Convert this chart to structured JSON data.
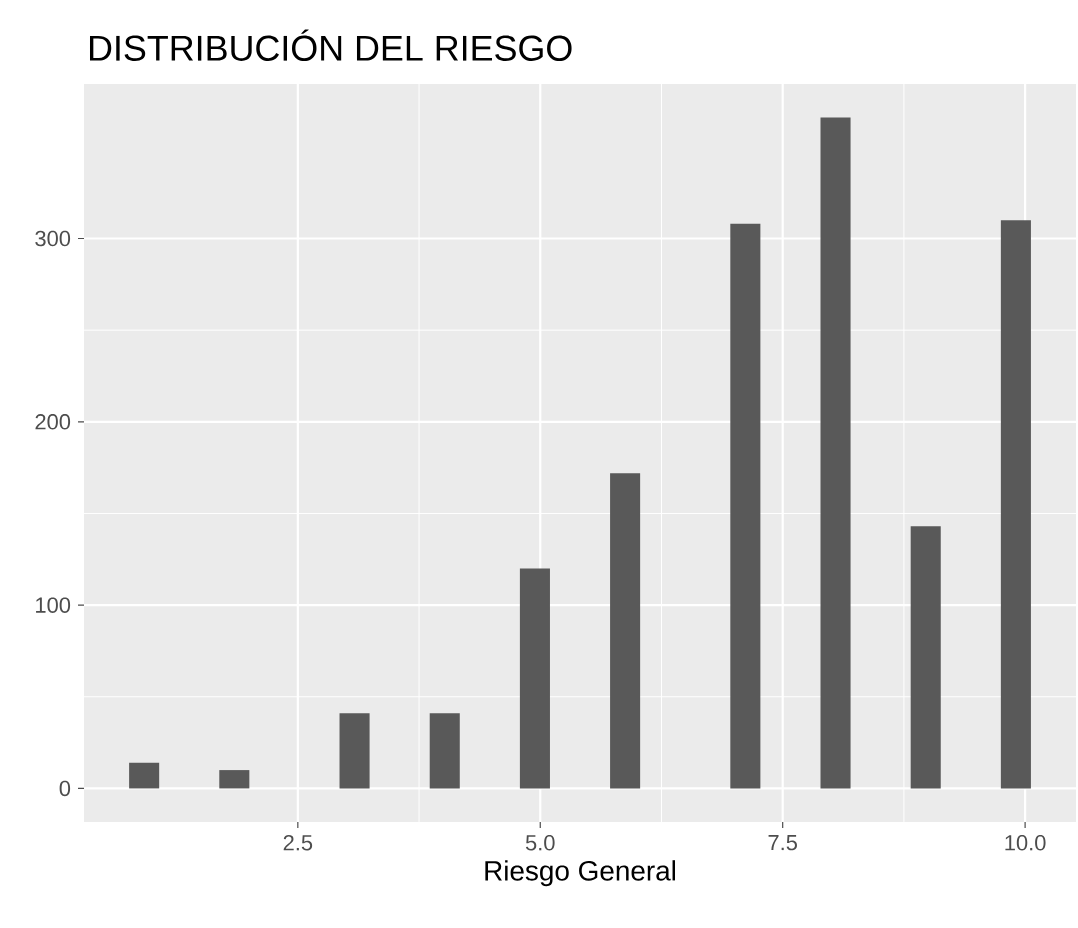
{
  "chart_data": {
    "type": "histogram",
    "title": "DISTRIBUCIÓN DEL RIESGO",
    "xlabel": "Riesgo General",
    "bins": [
      0.76,
      1.07,
      1.38,
      1.69,
      2.0,
      2.31,
      2.62,
      2.93,
      3.24,
      3.55,
      3.86,
      4.17,
      4.48,
      4.79,
      5.1,
      5.41,
      5.72,
      6.03,
      6.34,
      6.65,
      6.96,
      7.27,
      7.58,
      7.89,
      8.2,
      8.51,
      8.82,
      9.13,
      9.44,
      9.75,
      10.06
    ],
    "values": [
      14,
      0,
      0,
      10,
      0,
      0,
      0,
      41,
      0,
      0,
      41,
      0,
      0,
      120,
      0,
      0,
      172,
      0,
      0,
      0,
      308,
      0,
      0,
      366,
      0,
      0,
      143,
      0,
      0,
      310
    ],
    "color": "#595959",
    "xlim": [
      0.295,
      10.525
    ],
    "xticks": [
      2.5,
      {
        "value": 5,
        "label": "5.0"
      },
      7.5,
      {
        "value": 10,
        "label": "10.0"
      }
    ],
    "ylim": [
      -18.3,
      384.3
    ],
    "yticks": [
      0,
      100,
      200,
      300
    ],
    "grid": true
  }
}
